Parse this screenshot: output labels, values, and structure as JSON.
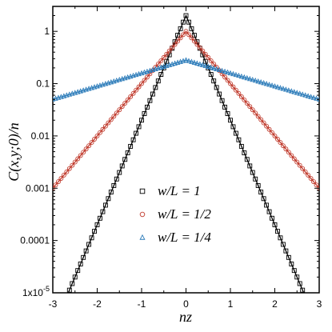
{
  "chart_data": {
    "type": "scatter",
    "title": "",
    "xlabel": "nz",
    "ylabel": "C(x,y;0)/n",
    "xlim": [
      -3,
      3
    ],
    "ylim": [
      1e-05,
      3
    ],
    "yscale": "log",
    "grid": false,
    "legend_position": "lower-center",
    "x_ticks": [
      {
        "value": -3,
        "label": "-3"
      },
      {
        "value": -2,
        "label": "-2"
      },
      {
        "value": -1,
        "label": "-1"
      },
      {
        "value": 0,
        "label": "0"
      },
      {
        "value": 1,
        "label": "1"
      },
      {
        "value": 2,
        "label": "2"
      },
      {
        "value": 3,
        "label": "3"
      }
    ],
    "y_ticks": [
      {
        "value": 1,
        "label": "1"
      },
      {
        "value": 0.1,
        "label": "0.1"
      },
      {
        "value": 0.01,
        "label": "0.01"
      },
      {
        "value": 0.001,
        "label": "0.001"
      },
      {
        "value": 0.0001,
        "label": "0.0001"
      },
      {
        "value": 1e-05,
        "label": "1x10",
        "exponent": "-5"
      }
    ],
    "series": [
      {
        "name": "w/L = 1",
        "marker": "square",
        "color": "#000000",
        "peak": 2.0,
        "decay_per_unit_x": 2.0
      },
      {
        "name": "w/L = 1/2",
        "marker": "circle",
        "color": "#c0392b",
        "peak": 1.0,
        "decay_per_unit_x": 1.0
      },
      {
        "name": "w/L = 1/4",
        "marker": "triangle",
        "color": "#2b7bb9",
        "peak": 0.28,
        "decay_per_unit_x": 0.25
      }
    ]
  }
}
